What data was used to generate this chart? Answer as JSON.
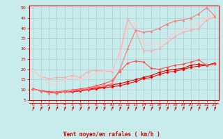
{
  "xlabel": "Vent moyen/en rafales ( km/h )",
  "background_color": "#c8ecec",
  "grid_color": "#aacccc",
  "x_values": [
    0,
    1,
    2,
    3,
    4,
    5,
    6,
    7,
    8,
    9,
    10,
    11,
    12,
    13,
    14,
    15,
    16,
    17,
    18,
    19,
    20,
    21,
    22,
    23
  ],
  "series": [
    {
      "color": "#ff0000",
      "linewidth": 0.8,
      "marker": "D",
      "markersize": 1.8,
      "y": [
        10.5,
        9.5,
        9.0,
        8.5,
        9.0,
        9.0,
        9.5,
        10.0,
        10.5,
        11.0,
        11.5,
        12.0,
        13.0,
        14.0,
        15.5,
        16.0,
        17.5,
        18.5,
        19.0,
        20.0,
        21.0,
        21.5,
        22.0,
        22.5
      ]
    },
    {
      "color": "#dd0000",
      "linewidth": 0.8,
      "marker": "D",
      "markersize": 1.8,
      "y": [
        10.5,
        9.5,
        9.0,
        8.5,
        9.0,
        9.2,
        9.8,
        10.2,
        11.0,
        11.5,
        12.5,
        13.0,
        14.0,
        15.0,
        16.0,
        17.0,
        18.5,
        19.5,
        20.0,
        20.5,
        22.0,
        22.5,
        22.0,
        23.0
      ]
    },
    {
      "color": "#ff5555",
      "linewidth": 0.8,
      "marker": "D",
      "markersize": 1.8,
      "y": [
        10.5,
        9.5,
        9.2,
        9.0,
        9.5,
        10.0,
        10.5,
        11.0,
        12.0,
        13.0,
        14.5,
        19.0,
        23.0,
        24.0,
        23.5,
        20.5,
        20.0,
        21.0,
        22.0,
        22.5,
        23.5,
        24.5,
        22.0,
        22.5
      ]
    },
    {
      "color": "#ffaaaa",
      "linewidth": 0.8,
      "marker": "^",
      "markersize": 2.2,
      "y": [
        19.5,
        16.5,
        15.5,
        16.0,
        16.0,
        17.0,
        16.0,
        19.0,
        19.5,
        19.0,
        19.0,
        28.0,
        44.5,
        38.5,
        29.0,
        29.0,
        30.0,
        33.0,
        36.0,
        38.0,
        39.0,
        40.0,
        44.0,
        45.5
      ]
    },
    {
      "color": "#ffcccc",
      "linewidth": 0.8,
      "marker": "^",
      "markersize": 2.2,
      "y": [
        19.5,
        16.5,
        13.0,
        13.0,
        15.0,
        16.0,
        15.0,
        16.5,
        18.0,
        19.0,
        20.0,
        27.0,
        40.5,
        42.5,
        33.5,
        32.0,
        32.5,
        35.0,
        38.0,
        39.5,
        41.0,
        42.5,
        45.0,
        46.5
      ]
    },
    {
      "color": "#ff7777",
      "linewidth": 0.8,
      "marker": "^",
      "markersize": 2.2,
      "y": [
        10.5,
        9.5,
        8.5,
        8.5,
        9.0,
        9.5,
        10.0,
        10.5,
        11.5,
        12.0,
        13.0,
        20.0,
        30.0,
        39.0,
        38.0,
        38.5,
        40.0,
        42.0,
        43.5,
        44.0,
        45.0,
        47.0,
        50.0,
        46.0
      ]
    }
  ],
  "ylim": [
    5,
    51
  ],
  "xlim": [
    -0.5,
    23.5
  ],
  "yticks": [
    5,
    10,
    15,
    20,
    25,
    30,
    35,
    40,
    45,
    50
  ],
  "xticks": [
    0,
    1,
    2,
    3,
    4,
    5,
    6,
    7,
    8,
    9,
    10,
    11,
    12,
    13,
    14,
    15,
    16,
    17,
    18,
    19,
    20,
    21,
    22,
    23
  ],
  "tick_color": "#cc0000",
  "label_color": "#cc0000",
  "spine_color": "#cc0000"
}
